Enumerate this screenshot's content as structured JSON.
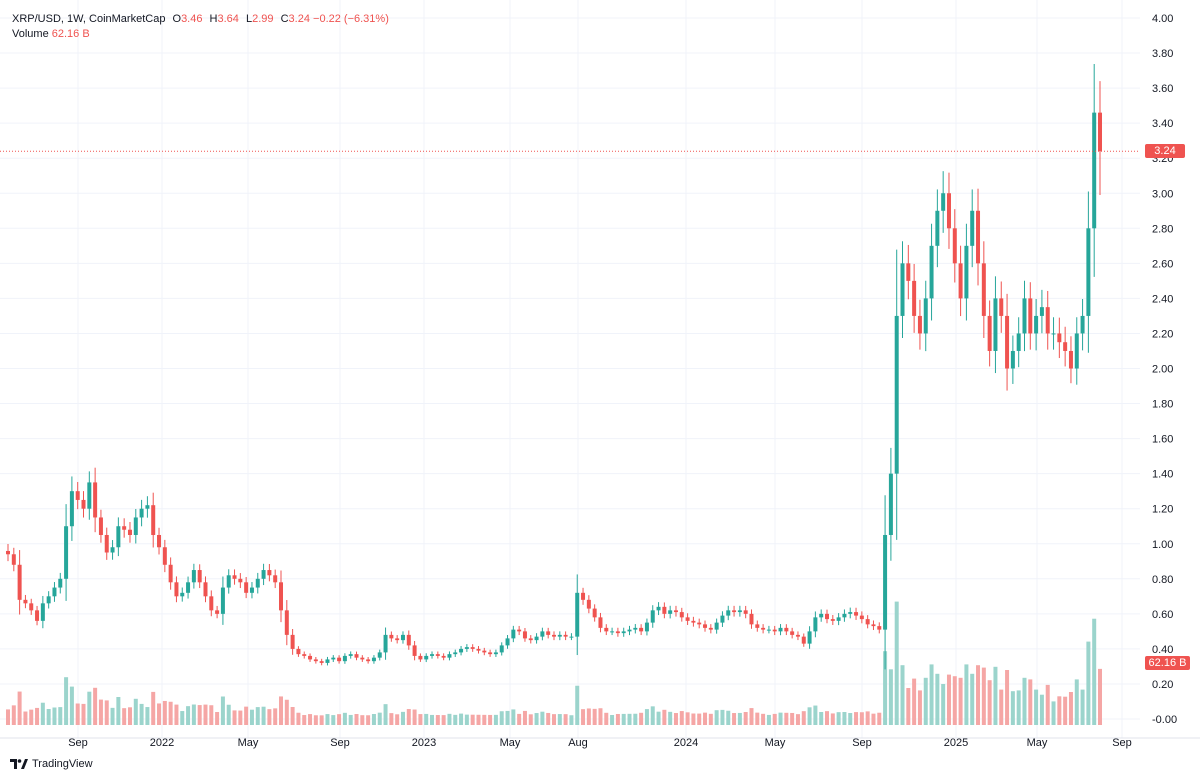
{
  "legend": {
    "symbol": "XRP/USD, 1W, CoinMarketCap",
    "o_label": "O",
    "o_value": "3.46",
    "h_label": "H",
    "h_value": "3.64",
    "l_label": "L",
    "l_value": "2.99",
    "c_label": "C",
    "c_value": "3.24",
    "change": "−0.22 (−6.31%)",
    "volume_label": "Volume",
    "volume_value": "62.16 B"
  },
  "branding": {
    "name": "TradingView"
  },
  "last_price": "3.24",
  "last_volume": "62.16 B",
  "colors": {
    "up": "#26a69a",
    "down": "#ef5350",
    "up_volume": "#9bd4cc",
    "down_volume": "#f5a6a5",
    "grid": "#f0f3fa"
  },
  "chart_data": {
    "type": "candlestick",
    "title": "XRP/USD, 1W, CoinMarketCap",
    "y_axis": {
      "min": 0,
      "max": 4,
      "ticks": [
        "4.00",
        "3.80",
        "3.60",
        "3.40",
        "3.20",
        "3.00",
        "2.80",
        "2.60",
        "2.40",
        "2.20",
        "2.00",
        "1.80",
        "1.60",
        "1.40",
        "1.20",
        "1.00",
        "0.80",
        "0.60",
        "0.40",
        "0.20",
        "-0.00"
      ]
    },
    "x_axis": {
      "ticks": [
        "Sep",
        "2022",
        "May",
        "Sep",
        "2023",
        "May",
        "Aug",
        "2024",
        "May",
        "Sep",
        "2025",
        "May",
        "Sep"
      ]
    },
    "close_prices": [
      0.94,
      0.88,
      0.68,
      0.66,
      0.62,
      0.56,
      0.66,
      0.7,
      0.75,
      0.8,
      1.1,
      1.3,
      1.25,
      1.2,
      1.35,
      1.15,
      1.05,
      0.95,
      0.98,
      1.1,
      1.08,
      1.05,
      1.15,
      1.2,
      1.22,
      1.05,
      0.98,
      0.88,
      0.78,
      0.7,
      0.72,
      0.78,
      0.85,
      0.78,
      0.7,
      0.62,
      0.6,
      0.75,
      0.82,
      0.8,
      0.78,
      0.72,
      0.75,
      0.8,
      0.85,
      0.82,
      0.78,
      0.62,
      0.48,
      0.4,
      0.37,
      0.36,
      0.34,
      0.33,
      0.32,
      0.34,
      0.35,
      0.33,
      0.36,
      0.37,
      0.35,
      0.34,
      0.33,
      0.35,
      0.38,
      0.48,
      0.46,
      0.45,
      0.48,
      0.42,
      0.36,
      0.34,
      0.36,
      0.37,
      0.36,
      0.35,
      0.37,
      0.38,
      0.4,
      0.41,
      0.4,
      0.39,
      0.38,
      0.37,
      0.38,
      0.42,
      0.46,
      0.51,
      0.5,
      0.46,
      0.45,
      0.47,
      0.5,
      0.48,
      0.47,
      0.48,
      0.47,
      0.47,
      0.72,
      0.68,
      0.63,
      0.58,
      0.52,
      0.5,
      0.5,
      0.49,
      0.5,
      0.51,
      0.52,
      0.5,
      0.55,
      0.62,
      0.64,
      0.6,
      0.62,
      0.61,
      0.58,
      0.56,
      0.55,
      0.54,
      0.52,
      0.51,
      0.55,
      0.59,
      0.62,
      0.61,
      0.62,
      0.6,
      0.54,
      0.52,
      0.51,
      0.51,
      0.5,
      0.52,
      0.5,
      0.48,
      0.47,
      0.43,
      0.5,
      0.58,
      0.6,
      0.57,
      0.56,
      0.58,
      0.6,
      0.61,
      0.59,
      0.57,
      0.54,
      0.53,
      0.51,
      1.05,
      1.4,
      2.3,
      2.6,
      2.5,
      2.3,
      2.2,
      2.4,
      2.7,
      2.9,
      3.0,
      2.8,
      2.6,
      2.4,
      2.7,
      2.9,
      2.6,
      2.3,
      2.1,
      2.4,
      2.3,
      2.0,
      2.1,
      2.2,
      2.4,
      2.2,
      2.3,
      2.35,
      2.2,
      2.2,
      2.15,
      2.1,
      2.0,
      2.2,
      2.3,
      2.8,
      3.46,
      3.24
    ],
    "last": {
      "open": 3.46,
      "high": 3.64,
      "low": 2.99,
      "close": 3.24,
      "change": -0.22,
      "change_pct": -6.31,
      "volume": "62.16 B"
    }
  }
}
